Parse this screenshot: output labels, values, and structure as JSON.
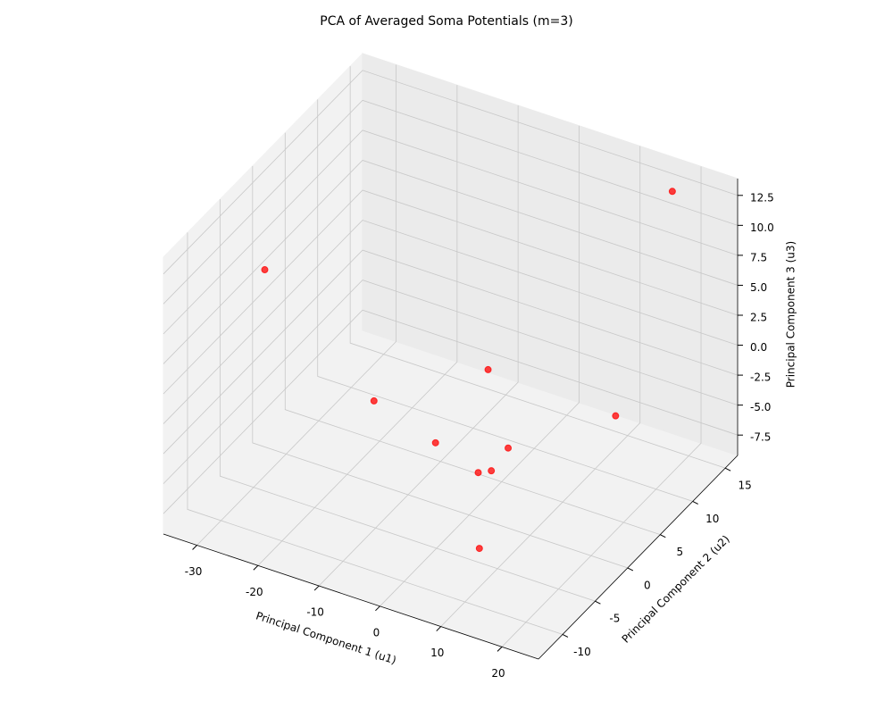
{
  "chart_data": {
    "type": "scatter3d",
    "title": "PCA of Averaged Soma Potentials (m=3)",
    "xlabel": "Principal Component 1 (u1)",
    "ylabel": "Principal Component 2 (u2)",
    "zlabel": "Principal Component 3 (u3)",
    "color": "#ff0000",
    "x": [
      18.6,
      -28.7,
      -1.9,
      -17.3,
      12.5,
      -3.9,
      4.7,
      3.1,
      4.5,
      9.8
    ],
    "y": [
      13.8,
      -4.5,
      4.7,
      1.6,
      10.8,
      -1.5,
      1.6,
      -1.5,
      -0.8,
      -7.6
    ],
    "z": [
      13.3,
      8.9,
      0.0,
      -3.5,
      -4.8,
      -3.0,
      -3.7,
      -4.3,
      -4.3,
      -6.1
    ],
    "xlim": [
      -35.5,
      26
    ],
    "ylim": [
      -13.7,
      16.9
    ],
    "zlim": [
      -9.2,
      13.9
    ],
    "xticks": [
      -30,
      -20,
      -10,
      0,
      10,
      20
    ],
    "yticks": [
      -10,
      -5,
      0,
      5,
      10,
      15
    ],
    "zticks": [
      -7.5,
      {
        "value": -5,
        "label": "-5.0"
      },
      -2.5,
      {
        "value": 0,
        "label": "0.0"
      },
      2.5,
      {
        "value": 5,
        "label": "5.0"
      },
      7.5,
      {
        "value": 10,
        "label": "10.0"
      },
      12.5
    ],
    "grid": true
  }
}
